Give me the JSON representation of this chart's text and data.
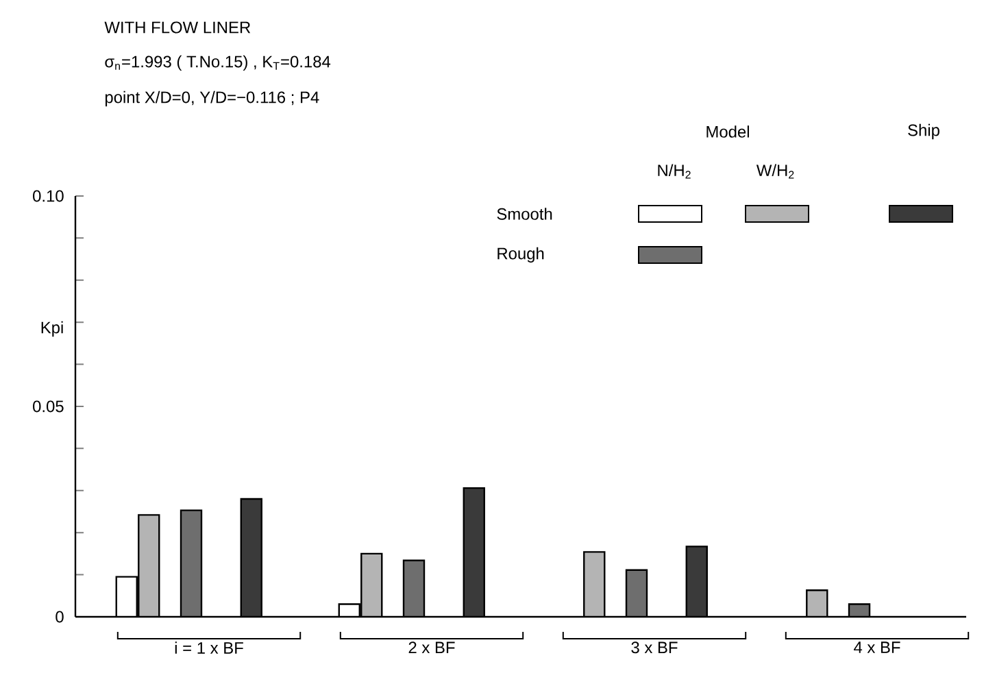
{
  "chart_data": {
    "type": "bar",
    "title": "WITH FLOW LINER",
    "subtitle": "σ$_{n}$=1.993 ( T.No.15) , K$_{T}$=0.184",
    "ylabel": "Kpi",
    "annotations": [
      "point  X/D=0, Y/D=−0.116 ; P4",
      "Model",
      "Ship",
      "N/H$_{2}$",
      "W/H$_{2}$",
      "Smooth",
      "Rough"
    ],
    "categories": [
      "i = 1 x BF",
      "2 x BF",
      "3 x BF",
      "4 x BF"
    ],
    "series": [
      {
        "color": "#ffffff",
        "values": [
          0.0095,
          0.003,
          null,
          null
        ]
      },
      {
        "color": "#b4b4b4",
        "values": [
          0.0242,
          0.015,
          0.0154,
          0.0063
        ]
      },
      {
        "color": "#6e6e6e",
        "values": [
          0.0253,
          0.0134,
          0.0111,
          0.003
        ]
      },
      {
        "color": "#3a3a3a",
        "values": [
          0.028,
          0.0306,
          0.0167,
          null
        ]
      }
    ],
    "ylim": [
      0,
      0.1
    ],
    "yticks": [
      {
        "value": 0,
        "label": "0"
      },
      {
        "value": 0.01,
        "label": null
      },
      {
        "value": 0.02,
        "label": null
      },
      {
        "value": 0.03,
        "label": null
      },
      {
        "value": 0.04,
        "label": null
      },
      {
        "value": 0.05,
        "label": "0.05"
      },
      {
        "value": 0.06,
        "label": null
      },
      {
        "value": 0.07,
        "label": null
      },
      {
        "value": 0.08,
        "label": null
      },
      {
        "value": 0.09,
        "label": null
      },
      {
        "value": 0.1,
        "label": "0.10"
      }
    ],
    "grid": false
  }
}
